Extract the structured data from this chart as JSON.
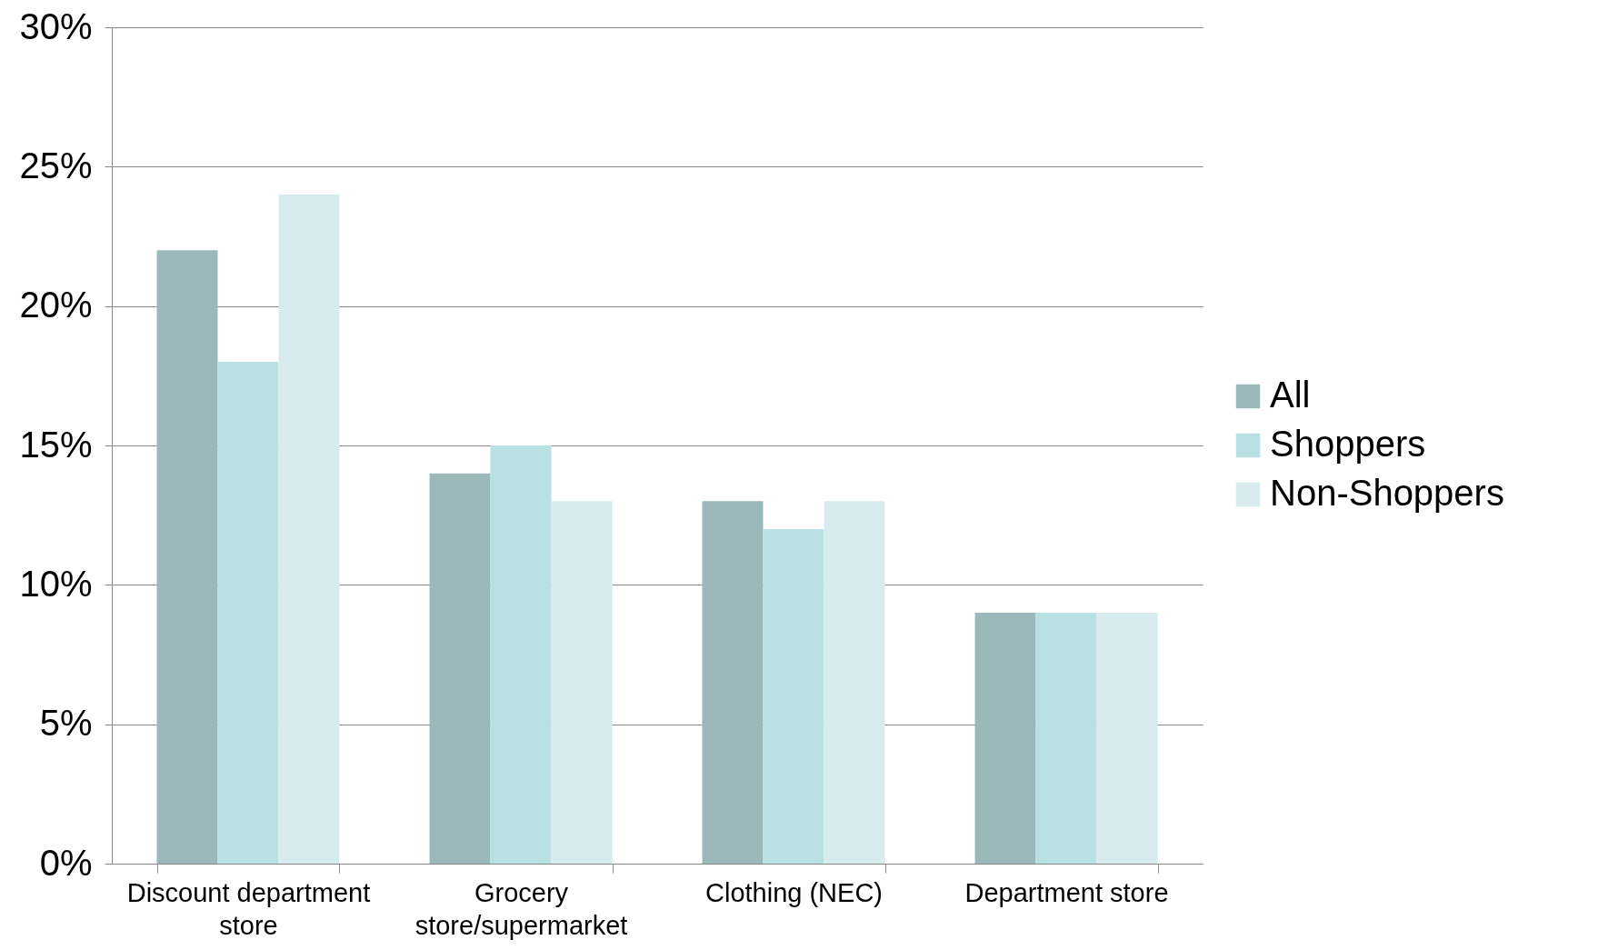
{
  "chart_data": {
    "type": "bar",
    "categories": [
      "Discount department store",
      "Grocery store/supermarket",
      "Clothing (NEC)",
      "Department store"
    ],
    "series": [
      {
        "name": "All",
        "color": "#9bb9ba",
        "values": [
          22,
          14,
          13,
          9
        ]
      },
      {
        "name": "Shoppers",
        "color": "#b9e0e2",
        "values": [
          18,
          15,
          12,
          9
        ]
      },
      {
        "name": "Non-Shoppers",
        "color": "#d8ebee",
        "values": [
          24,
          13,
          13,
          9
        ]
      }
    ],
    "ylim": [
      0,
      30
    ],
    "yticks": [
      {
        "value": 0,
        "label": "0%"
      },
      {
        "value": 5,
        "label": "5%"
      },
      {
        "value": 10,
        "label": "10%"
      },
      {
        "value": 15,
        "label": "15%"
      },
      {
        "value": 20,
        "label": "20%"
      },
      {
        "value": 25,
        "label": "25%"
      },
      {
        "value": 30,
        "label": "30%"
      }
    ],
    "grid": "y",
    "legend": "right"
  }
}
